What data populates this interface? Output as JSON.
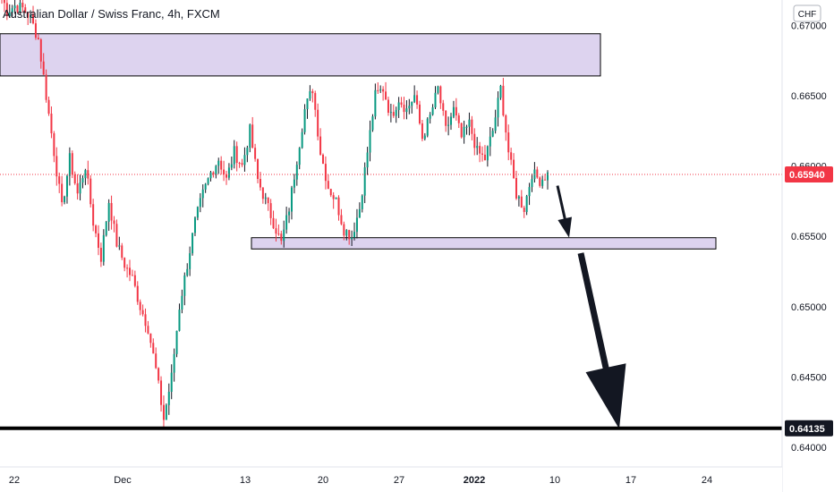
{
  "chart_data": {
    "type": "candlestick",
    "title": "Australian Dollar / Swiss Franc, 4h, FXCM",
    "currency": "CHF",
    "ylim": [
      0.6386,
      0.6718
    ],
    "y_ticks": [
      "0.67000",
      "0.66500",
      "0.66000",
      "0.65500",
      "0.65000",
      "0.64500",
      "0.64000"
    ],
    "x_ticks": [
      "22",
      "Dec",
      "13",
      "20",
      "27",
      "2022",
      "10",
      "17",
      "24"
    ],
    "last_price": {
      "value": "0.65940",
      "color": "#f23645"
    },
    "support_line": {
      "value": "0.64135",
      "color": "#000000"
    },
    "colors": {
      "up": "#089981",
      "down": "#f23645",
      "wick_up": "#131722",
      "wick_down": "#f23645",
      "zone": "#d1c4e9"
    },
    "zones": [
      {
        "name": "resistance-zone",
        "from": 0.6664,
        "to": 0.6694
      },
      {
        "name": "support-zone",
        "from": 0.6541,
        "to": 0.6549
      }
    ],
    "arrows": [
      {
        "name": "short-down-arrow",
        "from": [
          0.6586,
          "2022-01-10"
        ],
        "to": [
          0.6549,
          "2022-01-11"
        ]
      },
      {
        "name": "long-down-arrow",
        "from": [
          0.6538,
          "2022-01-11"
        ],
        "to": [
          0.6413,
          "2022-01-14"
        ]
      }
    ],
    "price_path": [
      0.6726,
      0.671,
      0.6714,
      0.6712,
      0.6705,
      0.669,
      0.665,
      0.661,
      0.657,
      0.6605,
      0.658,
      0.66,
      0.656,
      0.6535,
      0.6575,
      0.6545,
      0.653,
      0.652,
      0.65,
      0.6485,
      0.6455,
      0.642,
      0.645,
      0.65,
      0.653,
      0.656,
      0.658,
      0.6595,
      0.6605,
      0.659,
      0.661,
      0.66,
      0.6625,
      0.659,
      0.6575,
      0.656,
      0.6545,
      0.657,
      0.6605,
      0.664,
      0.6655,
      0.661,
      0.6585,
      0.6575,
      0.6555,
      0.655,
      0.657,
      0.661,
      0.665,
      0.6655,
      0.6635,
      0.6648,
      0.664,
      0.665,
      0.662,
      0.6635,
      0.6655,
      0.6625,
      0.664,
      0.662,
      0.663,
      0.661,
      0.6605,
      0.6625,
      0.6655,
      0.661,
      0.658,
      0.657,
      0.6595,
      0.659,
      0.6594
    ]
  }
}
